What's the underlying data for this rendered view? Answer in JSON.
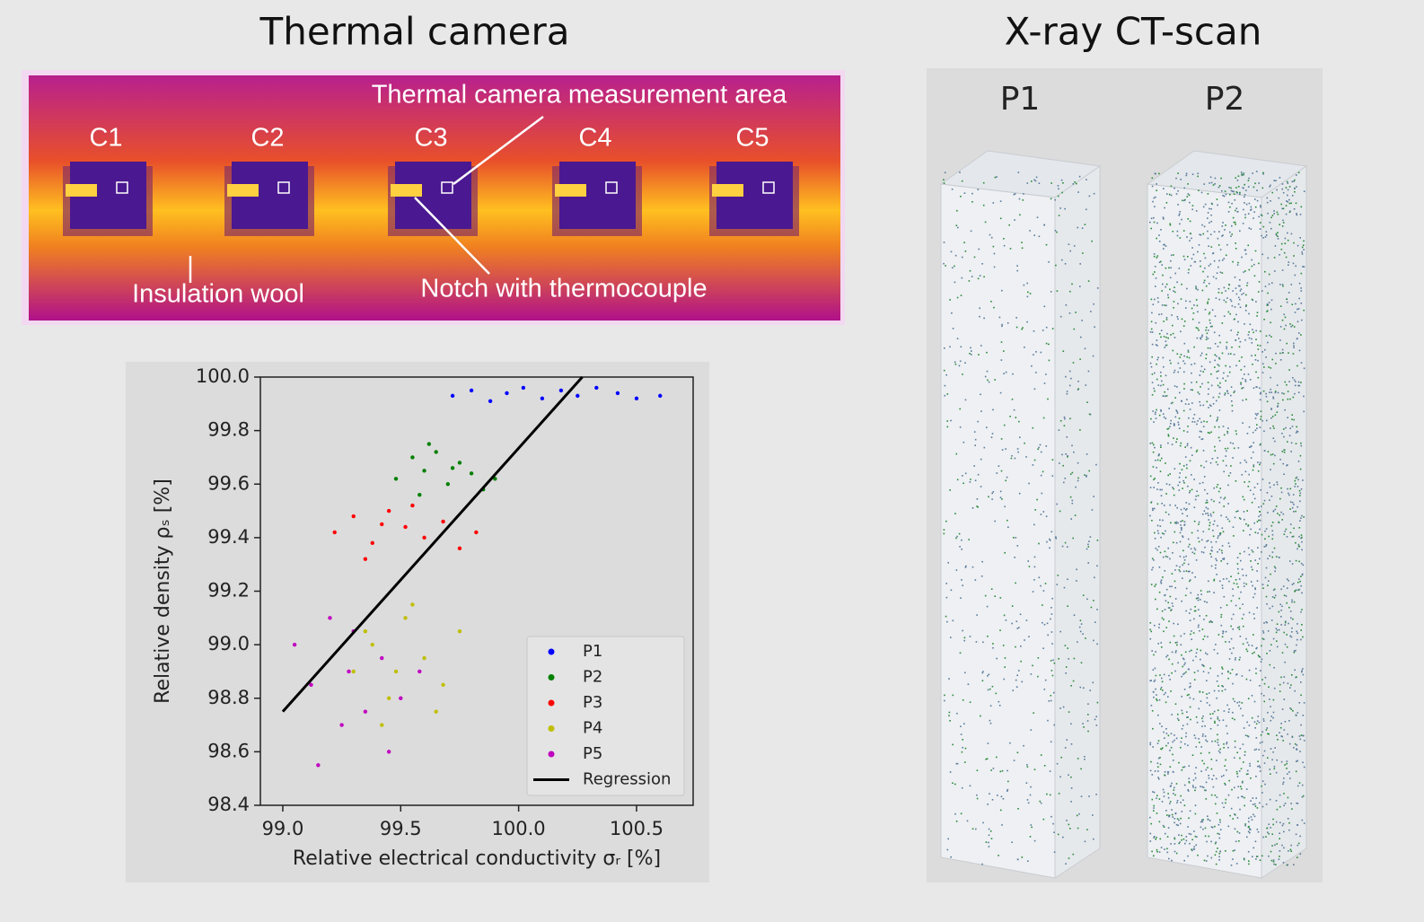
{
  "header": {
    "left_title": "Thermal camera",
    "right_title": "X-ray CT-scan"
  },
  "thermal_image": {
    "sample_labels": [
      "C1",
      "C2",
      "C3",
      "C4",
      "C5"
    ],
    "annotations": [
      "Thermal camera measurement area",
      "Insulation wool",
      "Notch with thermocouple"
    ]
  },
  "ct_scan": {
    "sample_labels": [
      "P1",
      "P2"
    ]
  },
  "chart_data": {
    "type": "scatter",
    "xlabel": "Relative electrical conductivity σᵣ [%]",
    "ylabel": "Relative density ρₛ [%]",
    "xlim": [
      98.905,
      100.74
    ],
    "ylim": [
      98.4,
      100.0
    ],
    "xticks": [
      {
        "value": 99.0,
        "label": "99.0"
      },
      99.5,
      {
        "value": 100.0,
        "label": "100.0"
      },
      100.5
    ],
    "yticks": [
      98.4,
      98.6,
      98.8,
      {
        "value": 99.0,
        "label": "99.0"
      },
      99.2,
      99.4,
      99.6,
      99.8,
      {
        "value": 100.0,
        "label": "100.0"
      }
    ],
    "legend": "lower right",
    "series": [
      {
        "name": "P1",
        "color": "#0000ff",
        "x": [
          99.72,
          99.8,
          99.88,
          99.95,
          100.02,
          100.1,
          100.18,
          100.25,
          100.33,
          100.42,
          100.5,
          100.6
        ],
        "values": [
          99.93,
          99.95,
          99.91,
          99.94,
          99.96,
          99.92,
          99.95,
          99.93,
          99.96,
          99.94,
          99.92,
          99.93
        ]
      },
      {
        "name": "P2",
        "color": "#008000",
        "x": [
          99.48,
          99.55,
          99.6,
          99.65,
          99.7,
          99.75,
          99.8,
          99.85,
          99.9,
          99.62,
          99.72,
          99.58
        ],
        "values": [
          99.62,
          99.7,
          99.65,
          99.72,
          99.6,
          99.68,
          99.64,
          99.58,
          99.62,
          99.75,
          99.66,
          99.56
        ]
      },
      {
        "name": "P3",
        "color": "#ff0000",
        "x": [
          99.22,
          99.3,
          99.38,
          99.45,
          99.52,
          99.6,
          99.68,
          99.75,
          99.82,
          99.35,
          99.55,
          99.42
        ],
        "values": [
          99.42,
          99.48,
          99.38,
          99.5,
          99.44,
          99.4,
          99.46,
          99.36,
          99.42,
          99.32,
          99.52,
          99.45
        ]
      },
      {
        "name": "P4",
        "color": "#bfbf00",
        "x": [
          99.3,
          99.38,
          99.45,
          99.52,
          99.6,
          99.68,
          99.75,
          99.42,
          99.55,
          99.48,
          99.65,
          99.35
        ],
        "values": [
          98.9,
          99.0,
          98.8,
          99.1,
          98.95,
          98.85,
          99.05,
          98.7,
          99.15,
          98.9,
          98.75,
          99.05
        ]
      },
      {
        "name": "P5",
        "color": "#bf00bf",
        "x": [
          99.05,
          99.12,
          99.2,
          99.28,
          99.35,
          99.42,
          99.5,
          99.58,
          99.15,
          99.3,
          99.45,
          99.25
        ],
        "values": [
          99.0,
          98.85,
          99.1,
          98.9,
          98.75,
          98.95,
          98.8,
          98.9,
          98.55,
          99.05,
          98.6,
          98.7
        ]
      },
      {
        "name": "Regression",
        "type": "line",
        "color": "#000000",
        "x": [
          99.0,
          100.27
        ],
        "values": [
          98.75,
          100.0
        ]
      }
    ]
  }
}
